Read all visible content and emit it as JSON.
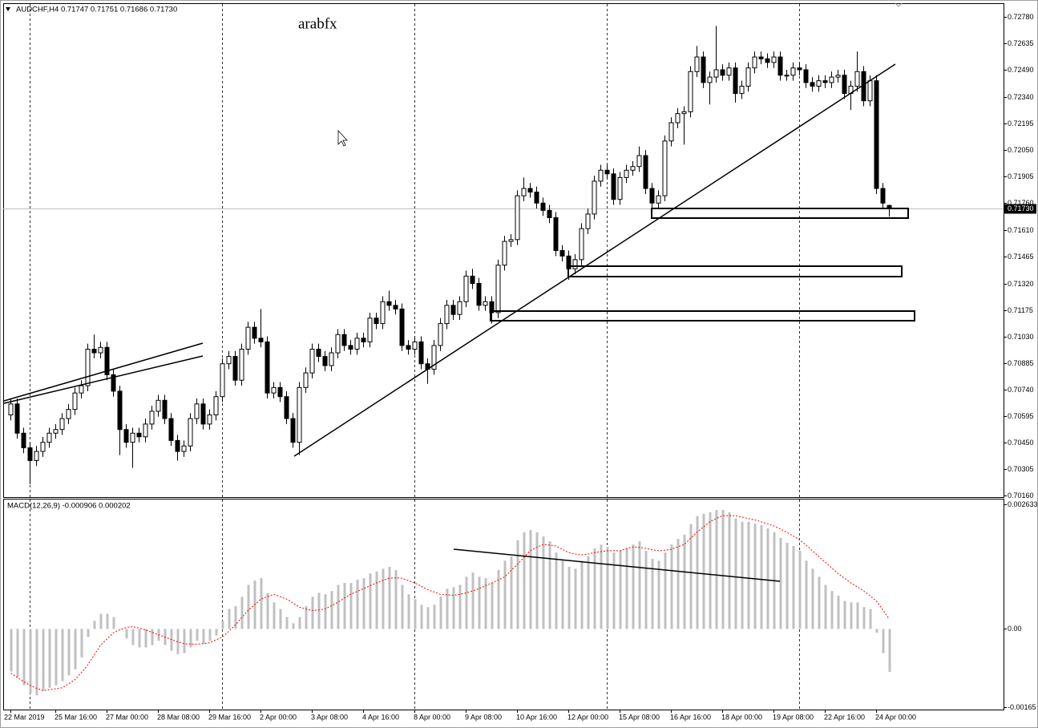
{
  "chart_data": [
    {
      "type": "candlestick",
      "title": "AUDCHF,H4  0.71747 0.71751 0.71686 0.71730",
      "annotation": "arabfx",
      "up_color": "#ffffff",
      "down_color": "#000000",
      "line_color": "#000000",
      "ylim": [
        0.7015,
        0.7285
      ],
      "yticks": [
        {
          "value": 0.7278,
          "label": "0.72780"
        },
        {
          "value": 0.72635,
          "label": "0.72635"
        },
        {
          "value": 0.7249,
          "label": "0.72490"
        },
        {
          "value": 0.7234,
          "label": "0.72340"
        },
        {
          "value": 0.72195,
          "label": "0.72195"
        },
        {
          "value": 0.7205,
          "label": "0.72050"
        },
        {
          "value": 0.71905,
          "label": "0.71905"
        },
        {
          "value": 0.7176,
          "label": "0.71760"
        },
        {
          "value": 0.7161,
          "label": "0.71610"
        },
        {
          "value": 0.71465,
          "label": "0.71465"
        },
        {
          "value": 0.7132,
          "label": "0.71320"
        },
        {
          "value": 0.71175,
          "label": "0.71175"
        },
        {
          "value": 0.7103,
          "label": "0.71030"
        },
        {
          "value": 0.70885,
          "label": "0.70885"
        },
        {
          "value": 0.7074,
          "label": "0.70740"
        },
        {
          "value": 0.70595,
          "label": "0.70595"
        },
        {
          "value": 0.7045,
          "label": "0.70450"
        },
        {
          "value": 0.70305,
          "label": "0.70305"
        },
        {
          "value": 0.7016,
          "label": "0.70160"
        }
      ],
      "last": {
        "value": 0.7173,
        "label": "0.71730"
      },
      "categories": [
        "22 Mar 2019",
        null,
        null,
        null,
        null,
        null,
        null,
        "25 Mar 16:00",
        null,
        null,
        null,
        null,
        null,
        null,
        null,
        "27 Mar 00:00",
        null,
        null,
        null,
        null,
        null,
        null,
        null,
        "28 Mar 08:00",
        null,
        null,
        null,
        null,
        null,
        null,
        null,
        "29 Mar 16:00",
        null,
        null,
        null,
        null,
        null,
        null,
        null,
        "2 Apr 00:00",
        null,
        null,
        null,
        null,
        null,
        null,
        null,
        "3 Apr 08:00",
        null,
        null,
        null,
        null,
        null,
        null,
        null,
        "4 Apr 16:00",
        null,
        null,
        null,
        null,
        null,
        null,
        null,
        "8 Apr 00:00",
        null,
        null,
        null,
        null,
        null,
        null,
        null,
        "9 Apr 08:00",
        null,
        null,
        null,
        null,
        null,
        null,
        null,
        "10 Apr 16:00",
        null,
        null,
        null,
        null,
        null,
        null,
        null,
        "12 Apr 00:00",
        null,
        null,
        null,
        null,
        null,
        null,
        null,
        "15 Apr 08:00",
        null,
        null,
        null,
        null,
        null,
        null,
        null,
        "16 Apr 16:00",
        null,
        null,
        null,
        null,
        null,
        null,
        null,
        "18 Apr 00:00",
        null,
        null,
        null,
        null,
        null,
        null,
        null,
        "19 Apr 08:00",
        null,
        null,
        null,
        null,
        null,
        null,
        null,
        "22 Apr 16:00",
        null,
        null,
        null,
        null,
        null,
        null,
        null,
        "24 Apr 00:00",
        null,
        null
      ],
      "open": [
        0.706,
        0.7066,
        0.705,
        0.7042,
        0.7035,
        0.704,
        0.7045,
        0.705,
        0.7052,
        0.7058,
        0.7063,
        0.7072,
        0.7076,
        0.7096,
        0.7094,
        0.7097,
        0.7082,
        0.7073,
        0.7052,
        0.7045,
        0.705,
        0.7048,
        0.7055,
        0.7062,
        0.7068,
        0.7058,
        0.7046,
        0.704,
        0.7043,
        0.7058,
        0.7066,
        0.7055,
        0.706,
        0.707,
        0.7088,
        0.7092,
        0.7079,
        0.7096,
        0.7108,
        0.7102,
        0.71,
        0.7072,
        0.7075,
        0.707,
        0.7058,
        0.7045,
        0.7075,
        0.7083,
        0.7096,
        0.7092,
        0.7087,
        0.7094,
        0.7104,
        0.7098,
        0.7096,
        0.7102,
        0.71,
        0.7113,
        0.711,
        0.7122,
        0.712,
        0.7118,
        0.7098,
        0.7096,
        0.71,
        0.7088,
        0.7085,
        0.7098,
        0.711,
        0.712,
        0.7115,
        0.7122,
        0.7136,
        0.7132,
        0.712,
        0.7122,
        0.7116,
        0.7142,
        0.7155,
        0.7156,
        0.718,
        0.7184,
        0.7182,
        0.7176,
        0.7172,
        0.7168,
        0.715,
        0.7147,
        0.714,
        0.7145,
        0.7162,
        0.717,
        0.7188,
        0.7194,
        0.7192,
        0.7178,
        0.719,
        0.7194,
        0.7196,
        0.7202,
        0.7184,
        0.7176,
        0.718,
        0.721,
        0.722,
        0.7225,
        0.7226,
        0.7248,
        0.7256,
        0.7242,
        0.7245,
        0.7249,
        0.7246,
        0.725,
        0.7236,
        0.724,
        0.725,
        0.7256,
        0.7255,
        0.7253,
        0.7256,
        0.7246,
        0.7246,
        0.725,
        0.7249,
        0.7242,
        0.724,
        0.7243,
        0.7242,
        0.7245,
        0.7246,
        0.7236,
        0.724,
        0.7248,
        0.7232,
        0.7243,
        0.7184,
        0.71747
      ],
      "high": [
        0.7069,
        0.7069,
        0.7053,
        0.7045,
        0.7043,
        0.7048,
        0.7053,
        0.7055,
        0.7061,
        0.7066,
        0.7075,
        0.7079,
        0.7099,
        0.7104,
        0.71,
        0.71,
        0.7085,
        0.7076,
        0.7055,
        0.7053,
        0.7053,
        0.7058,
        0.7065,
        0.7071,
        0.7071,
        0.7061,
        0.7049,
        0.7046,
        0.7061,
        0.7069,
        0.7069,
        0.7063,
        0.7073,
        0.7091,
        0.7095,
        0.7095,
        0.7099,
        0.7111,
        0.7111,
        0.7118,
        0.7103,
        0.7078,
        0.7078,
        0.7073,
        0.7061,
        0.7078,
        0.7086,
        0.7099,
        0.7099,
        0.7095,
        0.7097,
        0.7107,
        0.7107,
        0.7101,
        0.7105,
        0.7105,
        0.7116,
        0.7116,
        0.7125,
        0.7128,
        0.7123,
        0.7121,
        0.7101,
        0.7103,
        0.7103,
        0.7091,
        0.7101,
        0.7113,
        0.7123,
        0.7123,
        0.7125,
        0.7139,
        0.714,
        0.7135,
        0.7125,
        0.7125,
        0.7145,
        0.7158,
        0.7159,
        0.7183,
        0.719,
        0.7187,
        0.7185,
        0.7179,
        0.7175,
        0.7171,
        0.7153,
        0.715,
        0.7148,
        0.7165,
        0.7173,
        0.7191,
        0.7197,
        0.7197,
        0.7195,
        0.7193,
        0.7197,
        0.7199,
        0.7207,
        0.7205,
        0.7187,
        0.7183,
        0.7213,
        0.7223,
        0.7228,
        0.7229,
        0.7251,
        0.7262,
        0.7259,
        0.7248,
        0.7273,
        0.7252,
        0.7253,
        0.7253,
        0.7243,
        0.7253,
        0.7259,
        0.7259,
        0.7258,
        0.7259,
        0.7259,
        0.7249,
        0.7253,
        0.7253,
        0.7252,
        0.7245,
        0.7246,
        0.7246,
        0.7248,
        0.7249,
        0.7249,
        0.7243,
        0.7259,
        0.7251,
        0.7246,
        0.7246,
        0.7187,
        0.71751
      ],
      "low": [
        0.7057,
        0.7047,
        0.7039,
        0.7022,
        0.7032,
        0.7037,
        0.7042,
        0.7047,
        0.7049,
        0.7055,
        0.706,
        0.7069,
        0.7073,
        0.7091,
        0.7091,
        0.7079,
        0.707,
        0.7038,
        0.7042,
        0.7031,
        0.7045,
        0.7045,
        0.7052,
        0.7059,
        0.7055,
        0.7043,
        0.7035,
        0.7037,
        0.704,
        0.7055,
        0.7052,
        0.7052,
        0.7057,
        0.7067,
        0.7085,
        0.7076,
        0.7076,
        0.7093,
        0.7099,
        0.7097,
        0.7069,
        0.7069,
        0.7067,
        0.7055,
        0.7042,
        0.7038,
        0.7072,
        0.708,
        0.7089,
        0.7084,
        0.7084,
        0.7091,
        0.7095,
        0.7093,
        0.7093,
        0.7097,
        0.7097,
        0.7107,
        0.7107,
        0.7117,
        0.7115,
        0.7095,
        0.7093,
        0.7093,
        0.7085,
        0.7077,
        0.7082,
        0.7095,
        0.7107,
        0.7112,
        0.7112,
        0.7119,
        0.7129,
        0.7117,
        0.7117,
        0.711,
        0.7113,
        0.7139,
        0.7152,
        0.7153,
        0.7177,
        0.7179,
        0.7173,
        0.7169,
        0.7165,
        0.7147,
        0.7144,
        0.7134,
        0.7137,
        0.7142,
        0.7159,
        0.7167,
        0.7185,
        0.7189,
        0.7175,
        0.7175,
        0.7187,
        0.7191,
        0.7193,
        0.7181,
        0.717,
        0.7173,
        0.7177,
        0.7207,
        0.7217,
        0.7208,
        0.7223,
        0.7245,
        0.7239,
        0.723,
        0.7242,
        0.7243,
        0.7243,
        0.7231,
        0.7233,
        0.7237,
        0.7247,
        0.7252,
        0.725,
        0.725,
        0.7243,
        0.7243,
        0.7243,
        0.7246,
        0.7239,
        0.7237,
        0.7237,
        0.7239,
        0.7239,
        0.7242,
        0.7233,
        0.7227,
        0.7237,
        0.7229,
        0.7229,
        0.7181,
        0.7173,
        0.71686
      ],
      "close": [
        0.7066,
        0.705,
        0.7042,
        0.7035,
        0.704,
        0.7045,
        0.705,
        0.7052,
        0.7058,
        0.7063,
        0.7072,
        0.7076,
        0.7096,
        0.7094,
        0.7097,
        0.7082,
        0.7073,
        0.7052,
        0.7045,
        0.705,
        0.7048,
        0.7055,
        0.7062,
        0.7068,
        0.7058,
        0.7046,
        0.704,
        0.7043,
        0.7058,
        0.7066,
        0.7055,
        0.706,
        0.707,
        0.7088,
        0.7092,
        0.7079,
        0.7096,
        0.7108,
        0.7102,
        0.71,
        0.7072,
        0.7075,
        0.707,
        0.7058,
        0.7045,
        0.7075,
        0.7083,
        0.7096,
        0.7092,
        0.7087,
        0.7094,
        0.7104,
        0.7098,
        0.7096,
        0.7102,
        0.71,
        0.7113,
        0.711,
        0.7122,
        0.712,
        0.7118,
        0.7098,
        0.7096,
        0.71,
        0.7088,
        0.7085,
        0.7098,
        0.711,
        0.712,
        0.7115,
        0.7122,
        0.7136,
        0.7132,
        0.712,
        0.7122,
        0.7116,
        0.7142,
        0.7155,
        0.7156,
        0.718,
        0.7184,
        0.7182,
        0.7176,
        0.7172,
        0.7168,
        0.715,
        0.7147,
        0.714,
        0.7145,
        0.7162,
        0.717,
        0.7188,
        0.7194,
        0.7192,
        0.7178,
        0.719,
        0.7194,
        0.7196,
        0.7202,
        0.7184,
        0.7176,
        0.718,
        0.721,
        0.722,
        0.7225,
        0.7226,
        0.7248,
        0.7256,
        0.7242,
        0.7245,
        0.7249,
        0.7246,
        0.725,
        0.7236,
        0.724,
        0.725,
        0.7256,
        0.7255,
        0.7253,
        0.7256,
        0.7246,
        0.7246,
        0.725,
        0.7249,
        0.7242,
        0.724,
        0.7243,
        0.7242,
        0.7245,
        0.7246,
        0.7236,
        0.724,
        0.7248,
        0.7232,
        0.7243,
        0.7184,
        0.7176,
        0.7173
      ]
    },
    {
      "type": "macd",
      "title": "MACD(12,26,9) -0.000906 0.000202",
      "ylim": [
        -0.0017,
        0.00273
      ],
      "yticks": [
        0.002633,
        {
          "value": 0,
          "label": "0.00"
        },
        -0.00165
      ],
      "series": [
        {
          "style": "histogram",
          "color": "#c0c0c0",
          "values": [
            -0.0009,
            -0.00102,
            -0.00119,
            -0.00136,
            -0.0014,
            -0.0013,
            -0.00124,
            -0.00119,
            -0.0011,
            -0.00098,
            -0.00085,
            -0.0006,
            -0.00017,
            0.00017,
            0.00032,
            0.00032,
            0.00025,
            0.0,
            -0.0002,
            -0.00034,
            -0.00039,
            -0.00039,
            -0.00034,
            -0.00025,
            -0.00034,
            -0.00046,
            -0.00053,
            -0.00051,
            -0.00039,
            -0.00025,
            -0.00031,
            -0.00025,
            -0.00014,
            0.00017,
            0.00042,
            0.00048,
            0.00068,
            0.00093,
            0.00102,
            0.00107,
            0.00076,
            0.00056,
            0.00042,
            0.00025,
            0.00012,
            0.00025,
            0.00048,
            0.00068,
            0.00076,
            0.00073,
            0.0008,
            0.00093,
            0.00097,
            0.00097,
            0.00104,
            0.00107,
            0.00117,
            0.00121,
            0.00127,
            0.00131,
            0.00124,
            0.00093,
            0.00073,
            0.00063,
            0.00051,
            0.00046,
            0.00051,
            0.00068,
            0.00085,
            0.00088,
            0.00093,
            0.0011,
            0.00119,
            0.0011,
            0.00107,
            0.00097,
            0.00124,
            0.00144,
            0.00153,
            0.00187,
            0.00204,
            0.00209,
            0.00204,
            0.00195,
            0.00185,
            0.00161,
            0.00144,
            0.00131,
            0.00127,
            0.00144,
            0.00153,
            0.0017,
            0.00178,
            0.00173,
            0.00161,
            0.00165,
            0.0017,
            0.00178,
            0.00185,
            0.00165,
            0.00148,
            0.00144,
            0.00161,
            0.00178,
            0.0019,
            0.00199,
            0.00221,
            0.00238,
            0.00243,
            0.00246,
            0.00251,
            0.00251,
            0.00246,
            0.00233,
            0.00226,
            0.00226,
            0.00222,
            0.00219,
            0.00212,
            0.00204,
            0.00192,
            0.00182,
            0.00175,
            0.00165,
            0.00144,
            0.00127,
            0.0011,
            0.00093,
            0.0008,
            0.0007,
            0.00059,
            0.00056,
            0.00056,
            0.00046,
            0.00042,
            -8e-05,
            -0.00051,
            -0.000906
          ]
        },
        {
          "style": "dotted-line",
          "color": "#ff0000",
          "values": [
            -0.00093,
            -0.00102,
            -0.00111,
            -0.00119,
            -0.00125,
            -0.0013,
            -0.00128,
            -0.00126,
            -0.00124,
            -0.00116,
            -0.00107,
            -0.00092,
            -0.00076,
            -0.00055,
            -0.00034,
            -0.00021,
            -8e-05,
            -2e-05,
            3e-05,
            5e-05,
            2e-05,
            -2e-05,
            -7e-05,
            -0.00012,
            -0.00017,
            -0.00022,
            -0.00027,
            -0.00031,
            -0.00032,
            -0.00032,
            -0.00031,
            -0.00029,
            -0.00023,
            -0.00017,
            -5e-05,
            8e-05,
            0.00024,
            0.00039,
            0.00051,
            0.00063,
            0.00068,
            0.00073,
            0.00068,
            0.00063,
            0.00055,
            0.00046,
            0.00042,
            0.00039,
            0.0004,
            0.00042,
            0.00049,
            0.00056,
            0.00065,
            0.00073,
            0.00079,
            0.00085,
            0.00091,
            0.00097,
            0.00102,
            0.00107,
            0.00108,
            0.00107,
            0.00102,
            0.00097,
            0.0009,
            0.00083,
            0.00078,
            0.00073,
            0.00072,
            0.00071,
            0.00073,
            0.00076,
            0.0008,
            0.00085,
            0.00091,
            0.00097,
            0.00103,
            0.0011,
            0.00123,
            0.00136,
            0.00151,
            0.00165,
            0.00172,
            0.00178,
            0.00177,
            0.00175,
            0.00168,
            0.00161,
            0.00158,
            0.00156,
            0.00158,
            0.00161,
            0.00163,
            0.00165,
            0.00165,
            0.00165,
            0.00169,
            0.00173,
            0.00172,
            0.0017,
            0.00167,
            0.00165,
            0.00166,
            0.00168,
            0.00173,
            0.00178,
            0.00191,
            0.00204,
            0.00215,
            0.00226,
            0.00233,
            0.00239,
            0.00239,
            0.00239,
            0.00236,
            0.00233,
            0.0023,
            0.00226,
            0.00222,
            0.00217,
            0.00211,
            0.00204,
            0.00196,
            0.00188,
            0.00177,
            0.00165,
            0.00153,
            0.00141,
            0.00129,
            0.00117,
            0.00107,
            0.00097,
            0.00089,
            0.0008,
            0.0007,
            0.00059,
            0.0004,
            0.000202
          ]
        }
      ]
    }
  ]
}
